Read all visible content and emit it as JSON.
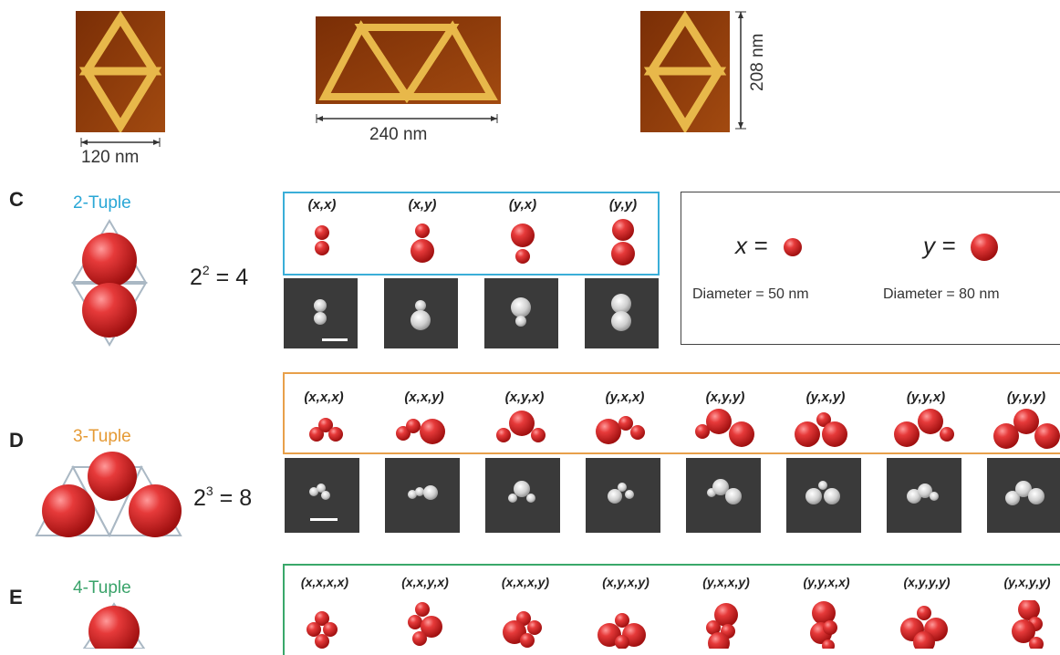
{
  "afm_scale": {
    "left": "120 nm",
    "middle": "240 nm",
    "right": "208 nm"
  },
  "panel_c": {
    "letter": "C",
    "title": "2-Tuple",
    "title_color": "#2aa7d6",
    "eq_base": "2",
    "eq_exp": "2",
    "eq_rest": " = 4",
    "box_color": "#3aaed8",
    "labels": [
      "(x,x)",
      "(x,y)",
      "(y,x)",
      "(y,y)"
    ]
  },
  "legend": {
    "x_var": "x =",
    "y_var": "y =",
    "x_diameter": "Diameter = 50 nm",
    "y_diameter": "Diameter = 80 nm"
  },
  "panel_d": {
    "letter": "D",
    "title": "3-Tuple",
    "title_color": "#e59a35",
    "eq_base": "2",
    "eq_exp": "3",
    "eq_rest": " = 8",
    "box_color": "#e8a04a",
    "labels": [
      "(x,x,x)",
      "(x,x,y)",
      "(x,y,x)",
      "(y,x,x)",
      "(x,y,y)",
      "(y,x,y)",
      "(y,y,x)",
      "(y,y,y)"
    ]
  },
  "panel_e": {
    "letter": "E",
    "title": "4-Tuple",
    "title_color": "#3aa36a",
    "box_color": "#3aa86a",
    "labels": [
      "(x,x,x,x)",
      "(x,x,y,x)",
      "(x,x,x,y)",
      "(x,y,x,y)",
      "(y,x,x,y)",
      "(y,y,x,x)",
      "(x,y,y,y)",
      "(y,x,y,y)"
    ]
  }
}
